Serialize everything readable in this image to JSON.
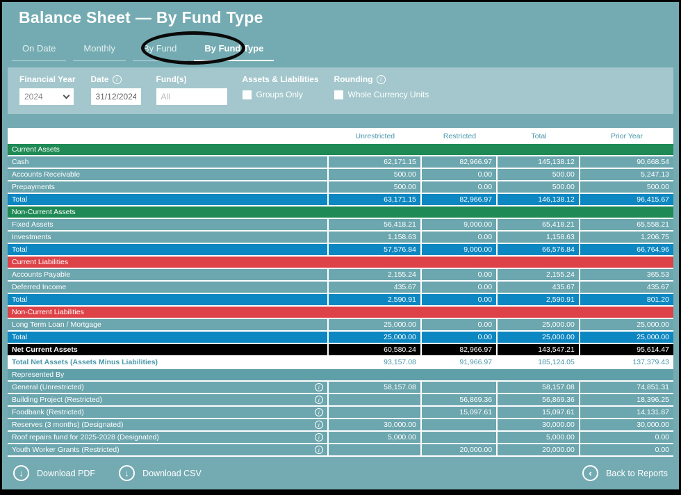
{
  "title": "Balance Sheet — By Fund Type",
  "tabs": [
    {
      "label": "On Date",
      "active": false
    },
    {
      "label": "Monthly",
      "active": false
    },
    {
      "label": "By Fund",
      "active": false
    },
    {
      "label": "By Fund Type",
      "active": true
    }
  ],
  "filters": {
    "financial_year": {
      "label": "Financial Year",
      "value": "2024"
    },
    "date": {
      "label": "Date",
      "value": "31/12/2024",
      "has_info_icon": true
    },
    "funds": {
      "label": "Fund(s)",
      "placeholder": "All"
    },
    "assets_liabilities": {
      "label": "Assets & Liabilities",
      "checkbox_label": "Groups Only",
      "checked": false
    },
    "rounding": {
      "label": "Rounding",
      "checkbox_label": "Whole Currency Units",
      "checked": false,
      "has_info_icon": true
    }
  },
  "table": {
    "columns": [
      "",
      "Unrestricted",
      "Restricted",
      "Total",
      "Prior Year"
    ],
    "rows": [
      {
        "kind": "section",
        "style": "green",
        "label": "Current Assets"
      },
      {
        "kind": "row",
        "style": "data",
        "label": "Cash",
        "values": [
          "62,171.15",
          "82,966.97",
          "145,138.12",
          "90,668.54"
        ]
      },
      {
        "kind": "row",
        "style": "data",
        "label": "Accounts Receivable",
        "values": [
          "500.00",
          "0.00",
          "500.00",
          "5,247.13"
        ]
      },
      {
        "kind": "row",
        "style": "data",
        "label": "Prepayments",
        "values": [
          "500.00",
          "0.00",
          "500.00",
          "500.00"
        ]
      },
      {
        "kind": "row",
        "style": "total",
        "label": "Total",
        "values": [
          "63,171.15",
          "82,966.97",
          "146,138.12",
          "96,415.67"
        ]
      },
      {
        "kind": "section",
        "style": "green",
        "label": "Non-Current Assets"
      },
      {
        "kind": "row",
        "style": "data",
        "label": "Fixed Assets",
        "values": [
          "56,418.21",
          "9,000.00",
          "65,418.21",
          "65,558.21"
        ]
      },
      {
        "kind": "row",
        "style": "data",
        "label": "Investments",
        "values": [
          "1,158.63",
          "0.00",
          "1,158.63",
          "1,206.75"
        ]
      },
      {
        "kind": "row",
        "style": "total",
        "label": "Total",
        "values": [
          "57,576.84",
          "9,000.00",
          "66,576.84",
          "66,764.96"
        ]
      },
      {
        "kind": "section",
        "style": "red",
        "label": "Current Liabilities"
      },
      {
        "kind": "row",
        "style": "data",
        "label": "Accounts Payable",
        "values": [
          "2,155.24",
          "0.00",
          "2,155.24",
          "365.53"
        ]
      },
      {
        "kind": "row",
        "style": "data",
        "label": "Deferred Income",
        "values": [
          "435.67",
          "0.00",
          "435.67",
          "435.67"
        ]
      },
      {
        "kind": "row",
        "style": "total",
        "label": "Total",
        "values": [
          "2,590.91",
          "0.00",
          "2,590.91",
          "801.20"
        ]
      },
      {
        "kind": "section",
        "style": "red",
        "label": "Non-Current Liabilities"
      },
      {
        "kind": "row",
        "style": "data",
        "label": "Long Term Loan / Mortgage",
        "values": [
          "25,000.00",
          "0.00",
          "25,000.00",
          "25,000.00"
        ]
      },
      {
        "kind": "row",
        "style": "total",
        "label": "Total",
        "values": [
          "25,000.00",
          "0.00",
          "25,000.00",
          "25,000.00"
        ]
      },
      {
        "kind": "row",
        "style": "black",
        "label": "Net Current Assets",
        "values": [
          "60,580.24",
          "82,966.97",
          "143,547.21",
          "95,614.47"
        ]
      },
      {
        "kind": "row",
        "style": "white",
        "label": "Total Net Assets (Assets Minus Liabilities)",
        "values": [
          "93,157.08",
          "91,966.97",
          "185,124.05",
          "137,379.43"
        ]
      },
      {
        "kind": "section",
        "style": "teal",
        "label": "Represented By"
      },
      {
        "kind": "row",
        "style": "data",
        "info": true,
        "label": "General (Unrestricted)",
        "values": [
          "58,157.08",
          "",
          "58,157.08",
          "74,851.31"
        ]
      },
      {
        "kind": "row",
        "style": "data",
        "info": true,
        "label": "Building Project (Restricted)",
        "values": [
          "",
          "56,869.36",
          "56,869.36",
          "18,396.25"
        ]
      },
      {
        "kind": "row",
        "style": "data",
        "info": true,
        "label": "Foodbank (Restricted)",
        "values": [
          "",
          "15,097.61",
          "15,097.61",
          "14,131.87"
        ]
      },
      {
        "kind": "row",
        "style": "data",
        "info": true,
        "label": "Reserves (3 months) (Designated)",
        "values": [
          "30,000.00",
          "",
          "30,000.00",
          "30,000.00"
        ]
      },
      {
        "kind": "row",
        "style": "data",
        "info": true,
        "label": "Roof repairs fund for 2025-2028 (Designated)",
        "values": [
          "5,000.00",
          "",
          "5,000.00",
          "0.00"
        ]
      },
      {
        "kind": "row",
        "style": "data",
        "info": true,
        "label": "Youth Worker Grants (Restricted)",
        "values": [
          "",
          "20,000.00",
          "20,000.00",
          "0.00"
        ]
      }
    ]
  },
  "footer": {
    "download_pdf": "Download PDF",
    "download_csv": "Download CSV",
    "back_to_reports": "Back to Reports"
  },
  "colors": {
    "page_bg": "#74abb2",
    "panel_bg": "#a3c7cc",
    "row_bg": "#6ca6ae",
    "total_bg": "#0d87c1",
    "green": "#1f8a55",
    "red": "#dc4247",
    "section_teal": "#5f9fa8",
    "teal_text": "#4a98ab"
  }
}
